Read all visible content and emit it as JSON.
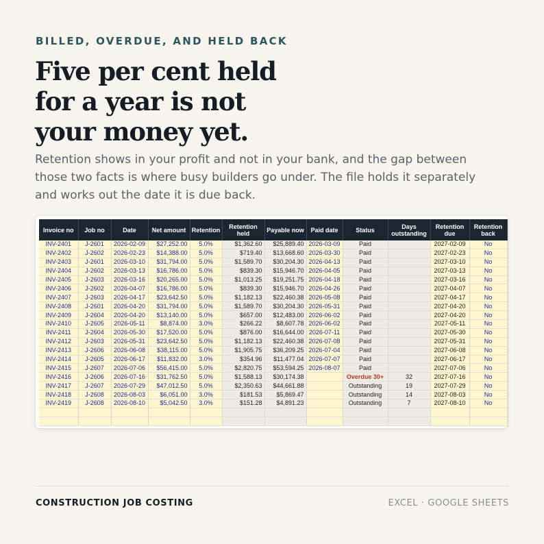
{
  "eyebrow": "BILLED, OVERDUE, AND HELD BACK",
  "headline": [
    "Five per cent held",
    "for a year is not",
    "your money yet."
  ],
  "lede": "Retention shows in your profit and not in your bank, and the gap between those two facts is where busy builders go under. The file holds it separately and works out the date it is due back.",
  "sheet": {
    "columns": [
      "Invoice no",
      "Job no",
      "Date",
      "Net amount",
      "Retention",
      "Retention held",
      "Payable now",
      "Paid date",
      "Status",
      "Days outstanding",
      "Retention due",
      "Retention back"
    ],
    "rows": [
      [
        "INV-2401",
        "J-2601",
        "2026-02-09",
        "$27,252.00",
        "5.0%",
        "$1,362.60",
        "$25,889.40",
        "2026-03-09",
        "Paid",
        "",
        "2027-02-09",
        "No"
      ],
      [
        "INV-2402",
        "J-2602",
        "2026-02-23",
        "$14,388.00",
        "5.0%",
        "$719.40",
        "$13,668.60",
        "2026-03-30",
        "Paid",
        "",
        "2027-02-23",
        "No"
      ],
      [
        "INV-2403",
        "J-2601",
        "2026-03-10",
        "$31,794.00",
        "5.0%",
        "$1,589.70",
        "$30,204.30",
        "2026-04-13",
        "Paid",
        "",
        "2027-03-10",
        "No"
      ],
      [
        "INV-2404",
        "J-2602",
        "2026-03-13",
        "$16,786.00",
        "5.0%",
        "$839.30",
        "$15,946.70",
        "2026-04-05",
        "Paid",
        "",
        "2027-03-13",
        "No"
      ],
      [
        "INV-2405",
        "J-2603",
        "2026-03-16",
        "$20,265.00",
        "5.0%",
        "$1,013.25",
        "$19,251.75",
        "2026-04-18",
        "Paid",
        "",
        "2027-03-16",
        "No"
      ],
      [
        "INV-2406",
        "J-2602",
        "2026-04-07",
        "$16,786.00",
        "5.0%",
        "$839.30",
        "$15,946.70",
        "2026-04-26",
        "Paid",
        "",
        "2027-04-07",
        "No"
      ],
      [
        "INV-2407",
        "J-2603",
        "2026-04-17",
        "$23,642.50",
        "5.0%",
        "$1,182.13",
        "$22,460.38",
        "2026-05-08",
        "Paid",
        "",
        "2027-04-17",
        "No"
      ],
      [
        "INV-2408",
        "J-2601",
        "2026-04-20",
        "$31,794.00",
        "5.0%",
        "$1,589.70",
        "$30,204.30",
        "2026-05-31",
        "Paid",
        "",
        "2027-04-20",
        "No"
      ],
      [
        "INV-2409",
        "J-2604",
        "2026-04-20",
        "$13,140.00",
        "5.0%",
        "$657.00",
        "$12,483.00",
        "2026-06-02",
        "Paid",
        "",
        "2027-04-20",
        "No"
      ],
      [
        "INV-2410",
        "J-2605",
        "2026-05-11",
        "$8,874.00",
        "3.0%",
        "$266.22",
        "$8,607.78",
        "2026-06-02",
        "Paid",
        "",
        "2027-05-11",
        "No"
      ],
      [
        "INV-2411",
        "J-2604",
        "2026-05-30",
        "$17,520.00",
        "5.0%",
        "$876.00",
        "$16,644.00",
        "2026-07-11",
        "Paid",
        "",
        "2027-05-30",
        "No"
      ],
      [
        "INV-2412",
        "J-2603",
        "2026-05-31",
        "$23,642.50",
        "5.0%",
        "$1,182.13",
        "$22,460.38",
        "2026-07-08",
        "Paid",
        "",
        "2027-05-31",
        "No"
      ],
      [
        "INV-2413",
        "J-2606",
        "2026-06-08",
        "$38,115.00",
        "5.0%",
        "$1,905.75",
        "$36,209.25",
        "2026-07-04",
        "Paid",
        "",
        "2027-06-08",
        "No"
      ],
      [
        "INV-2414",
        "J-2605",
        "2026-06-17",
        "$11,832.00",
        "3.0%",
        "$354.96",
        "$11,477.04",
        "2026-07-07",
        "Paid",
        "",
        "2027-06-17",
        "No"
      ],
      [
        "INV-2415",
        "J-2607",
        "2026-07-06",
        "$56,415.00",
        "5.0%",
        "$2,820.75",
        "$53,594.25",
        "2026-08-07",
        "Paid",
        "",
        "2027-07-06",
        "No"
      ],
      [
        "INV-2416",
        "J-2606",
        "2026-07-16",
        "$31,762.50",
        "5.0%",
        "$1,588.13",
        "$30,174.38",
        "",
        "Overdue 30+",
        "32",
        "2027-07-16",
        "No"
      ],
      [
        "INV-2417",
        "J-2607",
        "2026-07-29",
        "$47,012.50",
        "5.0%",
        "$2,350.63",
        "$44,661.88",
        "",
        "Outstanding",
        "19",
        "2027-07-29",
        "No"
      ],
      [
        "INV-2418",
        "J-2608",
        "2026-08-03",
        "$6,051.00",
        "3.0%",
        "$181.53",
        "$5,869.47",
        "",
        "Outstanding",
        "14",
        "2027-08-03",
        "No"
      ],
      [
        "INV-2419",
        "J-2608",
        "2026-08-10",
        "$5,042.50",
        "3.0%",
        "$151.28",
        "$4,891.23",
        "",
        "Outstanding",
        "7",
        "2027-08-10",
        "No"
      ],
      [
        "",
        "",
        "",
        "",
        "",
        "",
        "",
        "",
        "",
        "",
        "",
        ""
      ],
      [
        "",
        "",
        "",
        "",
        "",
        "",
        "",
        "",
        "",
        "",
        "",
        ""
      ]
    ]
  },
  "footer": {
    "left": "CONSTRUCTION JOB COSTING",
    "right": "EXCEL · GOOGLE SHEETS"
  },
  "colors": {
    "background": "#f8f5ee",
    "header_fill": "#1b2631",
    "input_fill": "#fdf6cf",
    "calc_fill": "#efebe4",
    "input_text": "#1f2a9e",
    "overdue": "#b23a2e",
    "accent": "#2b5560"
  }
}
